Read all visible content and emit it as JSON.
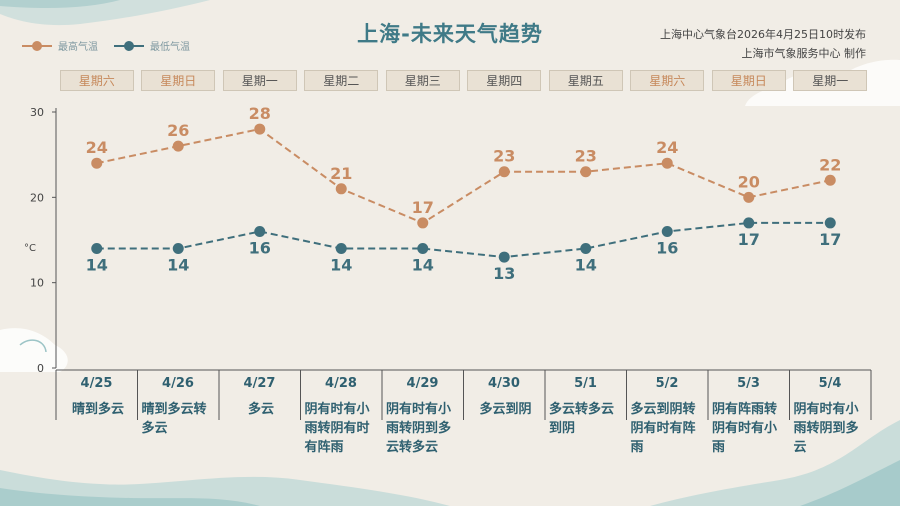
{
  "header": {
    "title": "上海-未来天气趋势",
    "source_line1": "上海中心气象台2026年4月25日10时发布",
    "source_line2": "上海市气象服务中心 制作"
  },
  "legend": {
    "high_label": "最高气温",
    "low_label": "最低气温"
  },
  "colors": {
    "high": "#c98c63",
    "low": "#3f6f7c",
    "title": "#3f7a87",
    "weekend_text": "#c6885a"
  },
  "chart_data": {
    "type": "line",
    "title": "上海-未来天气趋势",
    "ylabel": "°C",
    "ylim": [
      0,
      30
    ],
    "yticks": [
      0,
      10,
      20,
      30
    ],
    "categories": [
      "4/25",
      "4/26",
      "4/27",
      "4/28",
      "4/29",
      "4/30",
      "5/1",
      "5/2",
      "5/3",
      "5/4"
    ],
    "weekdays": [
      "星期六",
      "星期日",
      "星期一",
      "星期二",
      "星期三",
      "星期四",
      "星期五",
      "星期六",
      "星期日",
      "星期一"
    ],
    "weekend": [
      true,
      true,
      false,
      false,
      false,
      false,
      false,
      true,
      true,
      false
    ],
    "series": [
      {
        "name": "最高气温",
        "values": [
          24,
          26,
          28,
          21,
          17,
          23,
          23,
          24,
          20,
          22
        ]
      },
      {
        "name": "最低气温",
        "values": [
          14,
          14,
          16,
          14,
          14,
          13,
          14,
          16,
          17,
          17
        ]
      }
    ],
    "weather": [
      "晴到多云",
      "晴到多云转多云",
      "多云",
      "阴有时有小雨转阴有时有阵雨",
      "阴有时有小雨转阴到多云转多云",
      "多云到阴",
      "多云转多云到阴",
      "多云到阴转阴有时有阵雨",
      "阴有阵雨转阴有时有小雨",
      "阴有时有小雨转阴到多云"
    ],
    "grid": false,
    "legend": "top-left"
  }
}
